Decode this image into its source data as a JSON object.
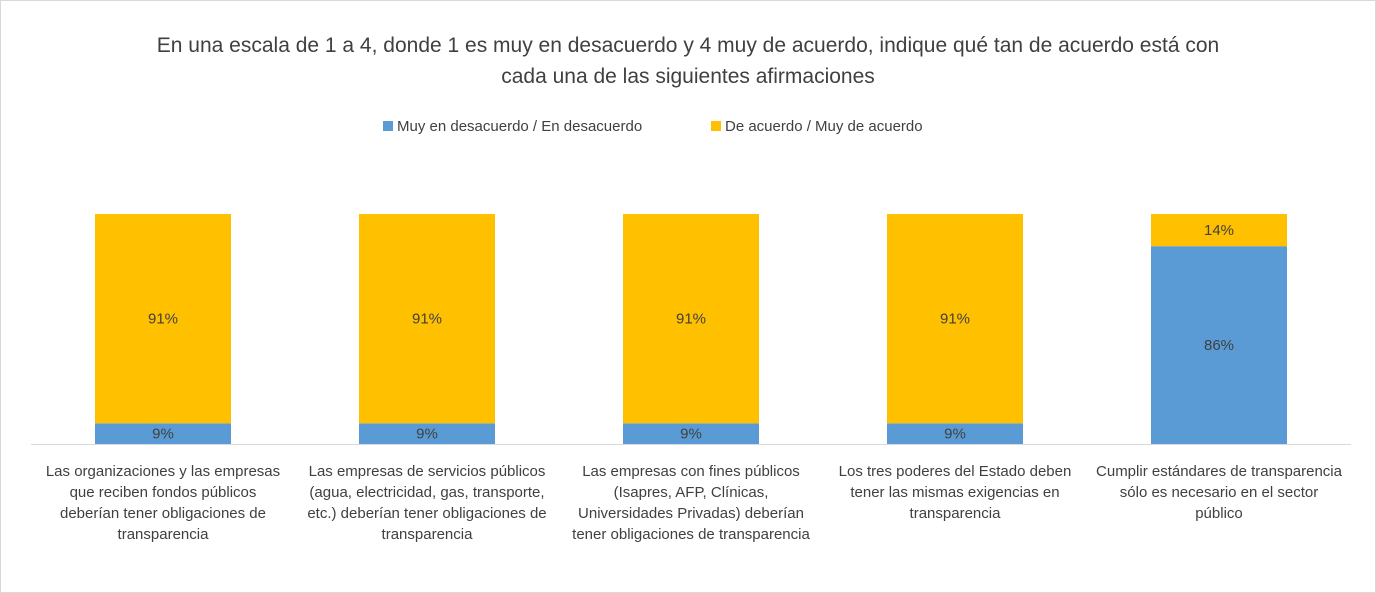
{
  "chart_data": {
    "type": "stacked_bar",
    "title": "En una escala de 1 a 4, donde 1 es muy en desacuerdo y 4 muy de acuerdo, indique qué tan de acuerdo está con cada una de las siguientes afirmaciones",
    "categories": [
      "Las organizaciones y las empresas que reciben fondos públicos deberían tener obligaciones de transparencia",
      "Las empresas de servicios públicos (agua, electricidad, gas, transporte, etc.) deberían tener obligaciones de transparencia",
      "Las empresas con fines públicos (Isapres, AFP, Clínicas, Universidades Privadas) deberían tener obligaciones de transparencia",
      "Los tres poderes del Estado deben tener las mismas exigencias en transparencia",
      "Cumplir estándares de transparencia sólo es necesario en el sector público"
    ],
    "series": [
      {
        "name": "Muy en desacuerdo / En desacuerdo",
        "color": "#5b9bd5",
        "values": [
          9,
          9,
          9,
          9,
          86
        ],
        "value_labels": [
          "9%",
          "9%",
          "9%",
          "9%",
          "86%"
        ]
      },
      {
        "name": "De acuerdo / Muy de acuerdo",
        "color": "#ffc000",
        "values": [
          91,
          91,
          91,
          91,
          14
        ],
        "value_labels": [
          "91%",
          "91%",
          "91%",
          "91%",
          "14%"
        ]
      }
    ],
    "legend": "top"
  }
}
